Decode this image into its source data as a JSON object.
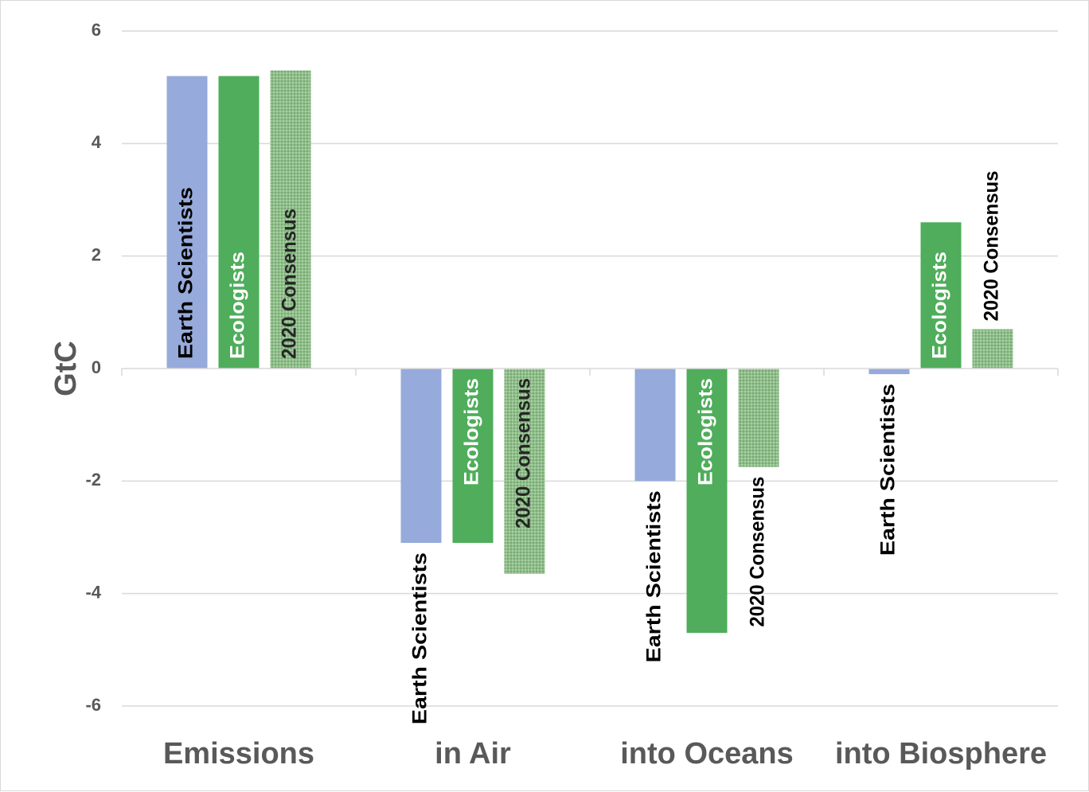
{
  "chart_data": {
    "type": "bar",
    "ylabel": "GtC",
    "ylim": [
      -6,
      6
    ],
    "yticks": [
      6,
      4,
      2,
      0,
      -2,
      -4,
      -6
    ],
    "grid": true,
    "legend": "none",
    "categories": [
      "Emissions",
      "in Air",
      "into Oceans",
      "into Biosphere"
    ],
    "series": [
      {
        "name": "Earth Scientists",
        "color": "#96aadb",
        "label_color": "#000000",
        "values": [
          5.2,
          -3.1,
          -2.0,
          -0.1
        ]
      },
      {
        "name": "Ecologists",
        "color": "#4fad5b",
        "label_color": "#ffffff",
        "values": [
          5.2,
          -3.1,
          -4.7,
          2.6
        ]
      },
      {
        "name": "2020 Consensus",
        "color": "#8fbf8a",
        "label_color": "#262626",
        "pattern": "crosshatch",
        "values": [
          5.3,
          -3.65,
          -1.75,
          0.7
        ]
      }
    ]
  }
}
